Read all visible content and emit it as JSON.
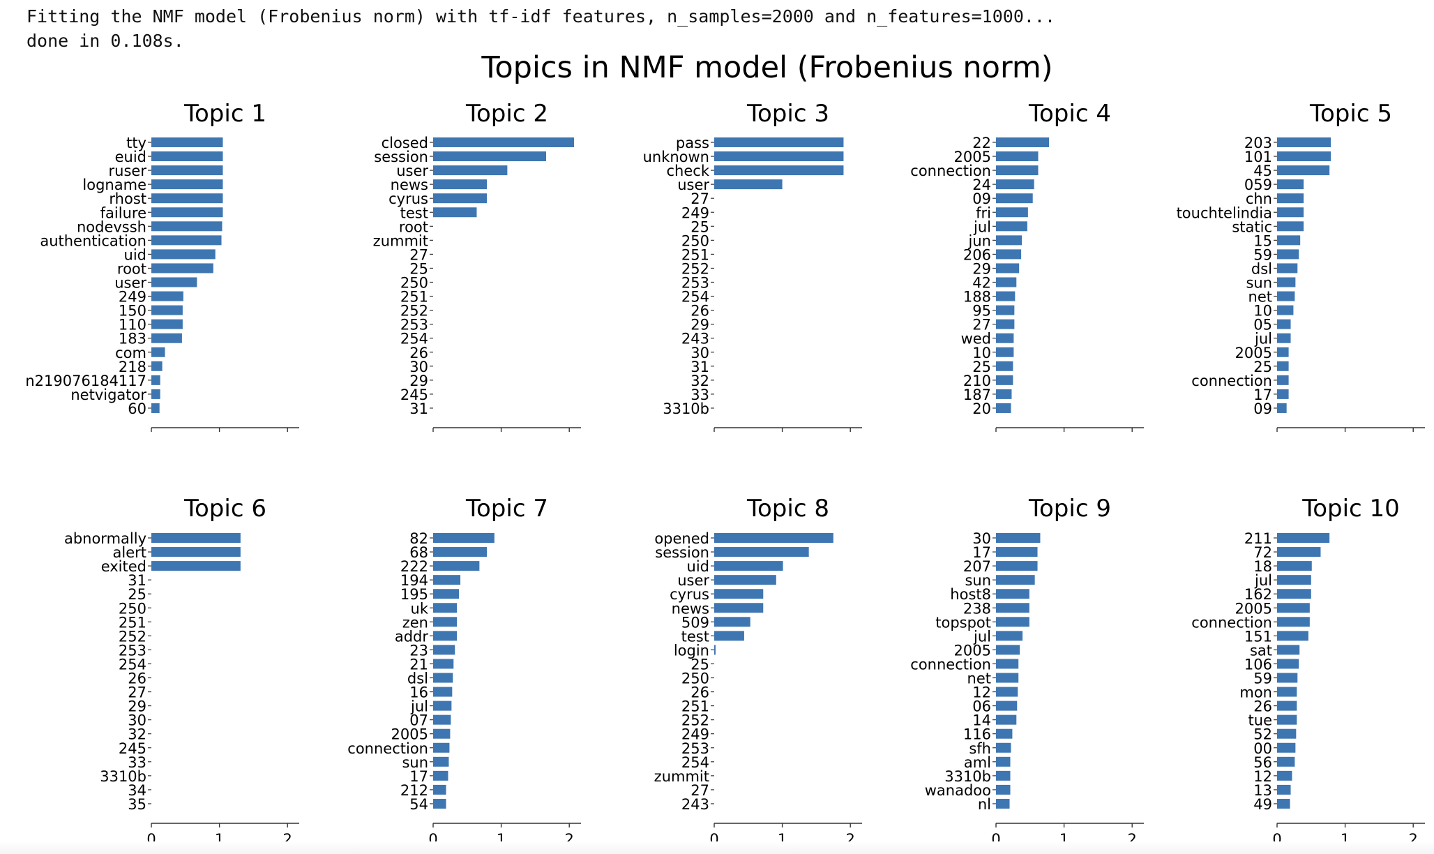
{
  "console": {
    "line1": "Fitting the NMF model (Frobenius norm) with tf-idf features, n_samples=2000 and n_features=1000...",
    "line2": "done in 0.108s."
  },
  "figure_title": "Topics in NMF model (Frobenius norm)",
  "colors": {
    "bar": "#3e76b2",
    "axis": "#333333",
    "text": "#000000"
  },
  "chart_data": [
    {
      "type": "bar",
      "orientation": "horizontal",
      "title": "Topic 1",
      "xlim": [
        0,
        2.2
      ],
      "xticks": [
        0,
        1,
        2
      ],
      "show_xtick_labels": false,
      "categories": [
        "tty",
        "euid",
        "ruser",
        "logname",
        "rhost",
        "failure",
        "nodevssh",
        "authentication",
        "uid",
        "root",
        "user",
        "249",
        "150",
        "110",
        "183",
        "com",
        "218",
        "n219076184117",
        "netvigator",
        "60"
      ],
      "values": [
        1.05,
        1.05,
        1.05,
        1.05,
        1.05,
        1.05,
        1.04,
        1.03,
        0.94,
        0.91,
        0.67,
        0.47,
        0.46,
        0.46,
        0.45,
        0.2,
        0.16,
        0.13,
        0.13,
        0.12
      ]
    },
    {
      "type": "bar",
      "orientation": "horizontal",
      "title": "Topic 2",
      "xlim": [
        0,
        2.2
      ],
      "xticks": [
        0,
        1,
        2
      ],
      "show_xtick_labels": false,
      "categories": [
        "closed",
        "session",
        "user",
        "news",
        "cyrus",
        "test",
        "root",
        "zummit",
        "27",
        "25",
        "250",
        "251",
        "252",
        "253",
        "254",
        "26",
        "30",
        "29",
        "245",
        "31"
      ],
      "values": [
        2.07,
        1.66,
        1.09,
        0.79,
        0.79,
        0.64,
        0,
        0,
        0,
        0,
        0,
        0,
        0,
        0,
        0,
        0,
        0,
        0,
        0,
        0
      ]
    },
    {
      "type": "bar",
      "orientation": "horizontal",
      "title": "Topic 3",
      "xlim": [
        0,
        2.2
      ],
      "xticks": [
        0,
        1,
        2
      ],
      "show_xtick_labels": false,
      "categories": [
        "pass",
        "unknown",
        "check",
        "user",
        "27",
        "249",
        "25",
        "250",
        "251",
        "252",
        "253",
        "254",
        "26",
        "29",
        "243",
        "30",
        "31",
        "32",
        "33",
        "3310b"
      ],
      "values": [
        1.9,
        1.9,
        1.9,
        1.0,
        0,
        0,
        0,
        0,
        0,
        0,
        0,
        0,
        0,
        0,
        0,
        0,
        0,
        0,
        0,
        0
      ]
    },
    {
      "type": "bar",
      "orientation": "horizontal",
      "title": "Topic 4",
      "xlim": [
        0,
        2.2
      ],
      "xticks": [
        0,
        1,
        2
      ],
      "show_xtick_labels": false,
      "categories": [
        "22",
        "2005",
        "connection",
        "24",
        "09",
        "fri",
        "jul",
        "jun",
        "206",
        "29",
        "42",
        "188",
        "95",
        "27",
        "wed",
        "10",
        "25",
        "210",
        "187",
        "20"
      ],
      "values": [
        0.78,
        0.62,
        0.62,
        0.56,
        0.54,
        0.47,
        0.46,
        0.38,
        0.37,
        0.34,
        0.3,
        0.28,
        0.27,
        0.27,
        0.26,
        0.26,
        0.25,
        0.25,
        0.23,
        0.22
      ]
    },
    {
      "type": "bar",
      "orientation": "horizontal",
      "title": "Topic 5",
      "xlim": [
        0,
        2.2
      ],
      "xticks": [
        0,
        1,
        2
      ],
      "show_xtick_labels": false,
      "categories": [
        "203",
        "101",
        "45",
        "059",
        "chn",
        "touchtelindia",
        "static",
        "15",
        "59",
        "dsl",
        "sun",
        "net",
        "10",
        "05",
        "jul",
        "2005",
        "25",
        "connection",
        "17",
        "09"
      ],
      "values": [
        0.79,
        0.79,
        0.77,
        0.39,
        0.39,
        0.39,
        0.39,
        0.34,
        0.32,
        0.3,
        0.27,
        0.26,
        0.24,
        0.2,
        0.2,
        0.17,
        0.17,
        0.17,
        0.17,
        0.14
      ]
    },
    {
      "type": "bar",
      "orientation": "horizontal",
      "title": "Topic 6",
      "xlim": [
        0,
        2.2
      ],
      "xticks": [
        0,
        1,
        2
      ],
      "show_xtick_labels": true,
      "categories": [
        "abnormally",
        "alert",
        "exited",
        "31",
        "25",
        "250",
        "251",
        "252",
        "253",
        "254",
        "26",
        "27",
        "29",
        "30",
        "32",
        "245",
        "33",
        "3310b",
        "34",
        "35"
      ],
      "values": [
        1.31,
        1.31,
        1.31,
        0,
        0,
        0,
        0,
        0,
        0,
        0,
        0,
        0,
        0,
        0,
        0,
        0,
        0,
        0,
        0,
        0
      ]
    },
    {
      "type": "bar",
      "orientation": "horizontal",
      "title": "Topic 7",
      "xlim": [
        0,
        2.2
      ],
      "xticks": [
        0,
        1,
        2
      ],
      "show_xtick_labels": true,
      "categories": [
        "82",
        "68",
        "222",
        "194",
        "195",
        "uk",
        "zen",
        "addr",
        "23",
        "21",
        "dsl",
        "16",
        "jul",
        "07",
        "2005",
        "connection",
        "sun",
        "17",
        "212",
        "54"
      ],
      "values": [
        0.9,
        0.79,
        0.68,
        0.4,
        0.38,
        0.35,
        0.35,
        0.35,
        0.32,
        0.3,
        0.29,
        0.28,
        0.27,
        0.26,
        0.25,
        0.24,
        0.23,
        0.22,
        0.19,
        0.19
      ]
    },
    {
      "type": "bar",
      "orientation": "horizontal",
      "title": "Topic 8",
      "xlim": [
        0,
        2.2
      ],
      "xticks": [
        0,
        1,
        2
      ],
      "show_xtick_labels": true,
      "categories": [
        "opened",
        "session",
        "uid",
        "user",
        "cyrus",
        "news",
        "509",
        "test",
        "login",
        "25",
        "250",
        "26",
        "251",
        "252",
        "249",
        "253",
        "254",
        "zummit",
        "27",
        "243"
      ],
      "values": [
        1.75,
        1.39,
        1.01,
        0.91,
        0.72,
        0.72,
        0.53,
        0.44,
        0.02,
        0,
        0,
        0,
        0,
        0,
        0,
        0,
        0,
        0,
        0,
        0
      ]
    },
    {
      "type": "bar",
      "orientation": "horizontal",
      "title": "Topic 9",
      "xlim": [
        0,
        2.2
      ],
      "xticks": [
        0,
        1,
        2
      ],
      "show_xtick_labels": true,
      "categories": [
        "30",
        "17",
        "207",
        "sun",
        "host8",
        "238",
        "topspot",
        "jul",
        "2005",
        "connection",
        "net",
        "12",
        "06",
        "14",
        "116",
        "sfh",
        "aml",
        "3310b",
        "wanadoo",
        "nl"
      ],
      "values": [
        0.65,
        0.61,
        0.61,
        0.57,
        0.49,
        0.49,
        0.49,
        0.39,
        0.35,
        0.33,
        0.33,
        0.32,
        0.31,
        0.3,
        0.24,
        0.22,
        0.21,
        0.21,
        0.21,
        0.2
      ]
    },
    {
      "type": "bar",
      "orientation": "horizontal",
      "title": "Topic 10",
      "xlim": [
        0,
        2.2
      ],
      "xticks": [
        0,
        1,
        2
      ],
      "show_xtick_labels": true,
      "categories": [
        "211",
        "72",
        "18",
        "jul",
        "162",
        "2005",
        "connection",
        "151",
        "sat",
        "106",
        "59",
        "mon",
        "26",
        "tue",
        "52",
        "00",
        "56",
        "12",
        "13",
        "49"
      ],
      "values": [
        0.77,
        0.64,
        0.51,
        0.5,
        0.5,
        0.48,
        0.48,
        0.46,
        0.33,
        0.32,
        0.3,
        0.29,
        0.29,
        0.29,
        0.28,
        0.27,
        0.26,
        0.22,
        0.2,
        0.19
      ]
    }
  ]
}
